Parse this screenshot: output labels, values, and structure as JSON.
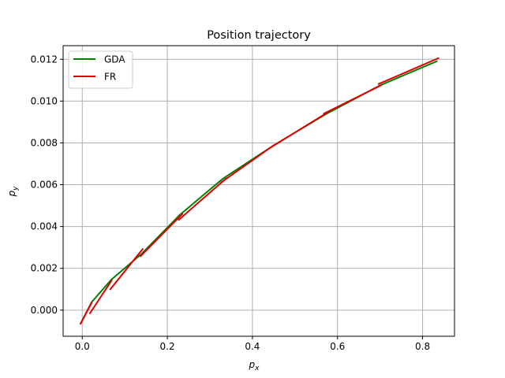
{
  "chart_data": {
    "type": "line",
    "title": "Position trajectory",
    "xlabel": {
      "base": "p",
      "sub": "x"
    },
    "ylabel": {
      "base": "p",
      "sub": "y"
    },
    "xlim": [
      -0.045,
      0.875
    ],
    "ylim": [
      -0.00125,
      0.01265
    ],
    "xticks": [
      0.0,
      0.2,
      0.4,
      0.6,
      0.8
    ],
    "xtick_labels": [
      "0.0",
      "0.2",
      "0.4",
      "0.6",
      "0.8"
    ],
    "yticks": [
      0.0,
      0.002,
      0.004,
      0.006,
      0.008,
      0.01,
      0.012
    ],
    "ytick_labels": [
      "0.000",
      "0.002",
      "0.004",
      "0.006",
      "0.008",
      "0.010",
      "0.012"
    ],
    "grid": true,
    "legend_position": "top-left",
    "series": [
      {
        "name": "GDA",
        "color": "#008000",
        "x": [
          -0.004,
          0.022,
          0.068,
          0.14,
          0.23,
          0.33,
          0.45,
          0.572,
          0.7,
          0.835
        ],
        "y": [
          -0.00065,
          0.00038,
          0.00145,
          0.0027,
          0.00457,
          0.00628,
          0.00788,
          0.00937,
          0.01075,
          0.01192
        ]
      },
      {
        "name": "FR",
        "color": "#dd0000",
        "segments": [
          {
            "x": [
              -0.004,
              0.022
            ],
            "y": [
              -0.00065,
              0.00035
            ]
          },
          {
            "x": [
              0.018,
              0.069
            ],
            "y": [
              -0.00015,
              0.00142
            ]
          },
          {
            "x": [
              0.066,
              0.142
            ],
            "y": [
              0.001,
              0.00292
            ]
          },
          {
            "x": [
              0.137,
              0.235
            ],
            "y": [
              0.00258,
              0.0046
            ]
          },
          {
            "x": [
              0.227,
              0.338
            ],
            "y": [
              0.00432,
              0.0063
            ]
          },
          {
            "x": [
              0.327,
              0.451
            ],
            "y": [
              0.00612,
              0.0079
            ]
          },
          {
            "x": [
              0.446,
              0.574
            ],
            "y": [
              0.00782,
              0.00942
            ]
          },
          {
            "x": [
              0.568,
              0.702
            ],
            "y": [
              0.0094,
              0.01075
            ]
          },
          {
            "x": [
              0.697,
              0.837
            ],
            "y": [
              0.01082,
              0.01205
            ]
          }
        ]
      }
    ]
  }
}
